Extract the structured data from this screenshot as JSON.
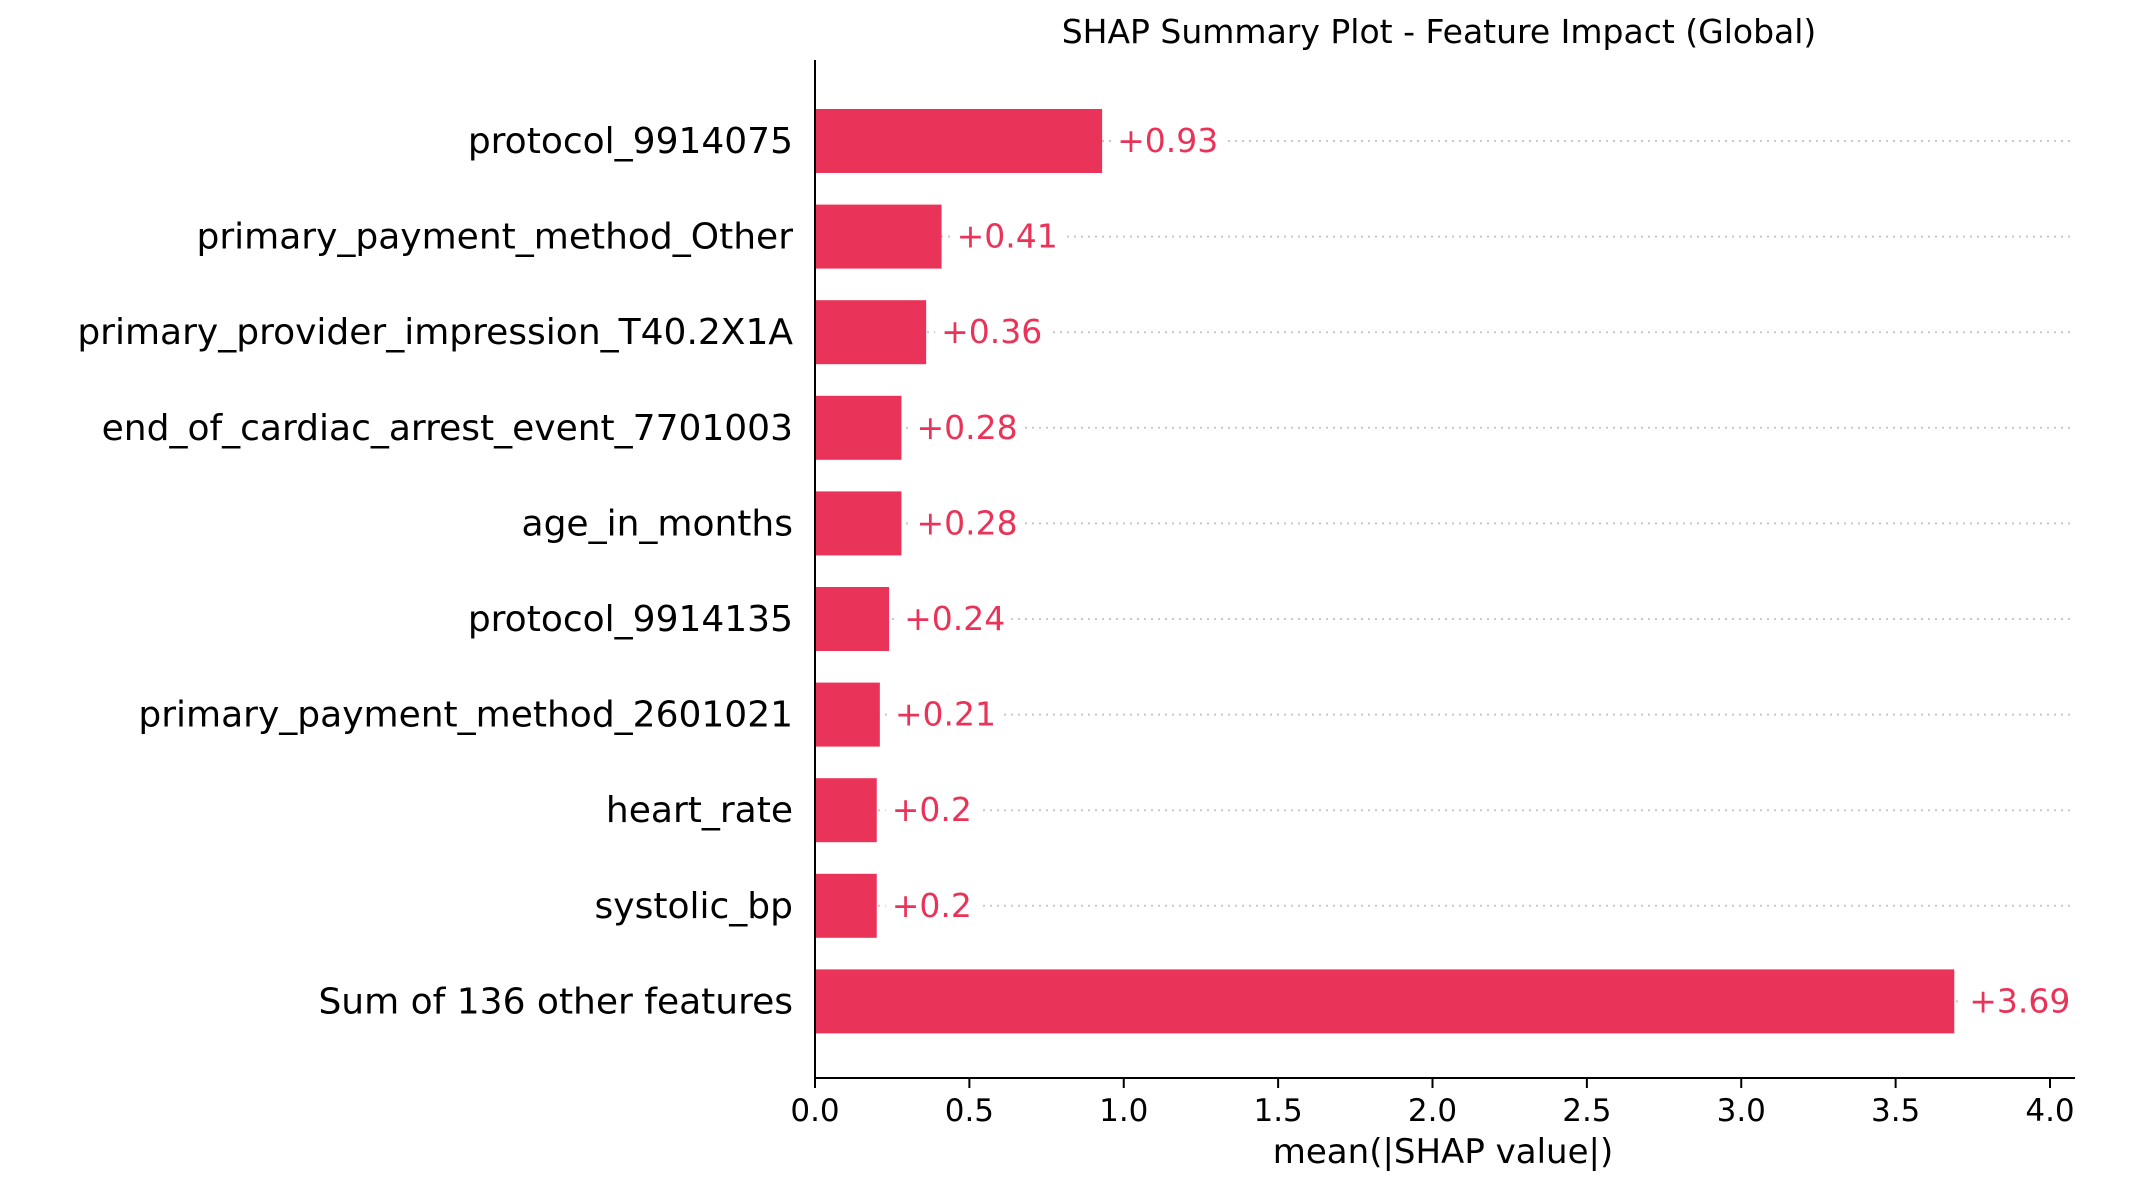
{
  "chart_data": {
    "type": "bar",
    "orientation": "horizontal",
    "title": "SHAP Summary Plot - Feature Impact (Global)",
    "xlabel": "mean(|SHAP value|)",
    "ylabel": "",
    "xlim": [
      0.0,
      4.0
    ],
    "xticks": [
      "0.0",
      "0.5",
      "1.0",
      "1.5",
      "2.0",
      "2.5",
      "3.0",
      "3.5",
      "4.0"
    ],
    "grid": "dotted horizontal guide lines per bar",
    "bar_color": "#ea3358",
    "value_label_color": "#ea3358",
    "categories": [
      "protocol_9914075",
      "primary_payment_method_Other",
      "primary_provider_impression_T40.2X1A",
      "end_of_cardiac_arrest_event_7701003",
      "age_in_months",
      "protocol_9914135",
      "primary_payment_method_2601021",
      "heart_rate",
      "systolic_bp",
      "Sum of 136 other features"
    ],
    "values": [
      0.93,
      0.41,
      0.36,
      0.28,
      0.28,
      0.24,
      0.21,
      0.2,
      0.2,
      3.69
    ],
    "value_labels": [
      "+0.93",
      "+0.41",
      "+0.36",
      "+0.28",
      "+0.28",
      "+0.24",
      "+0.21",
      "+0.2",
      "+0.2",
      "+3.69"
    ]
  }
}
